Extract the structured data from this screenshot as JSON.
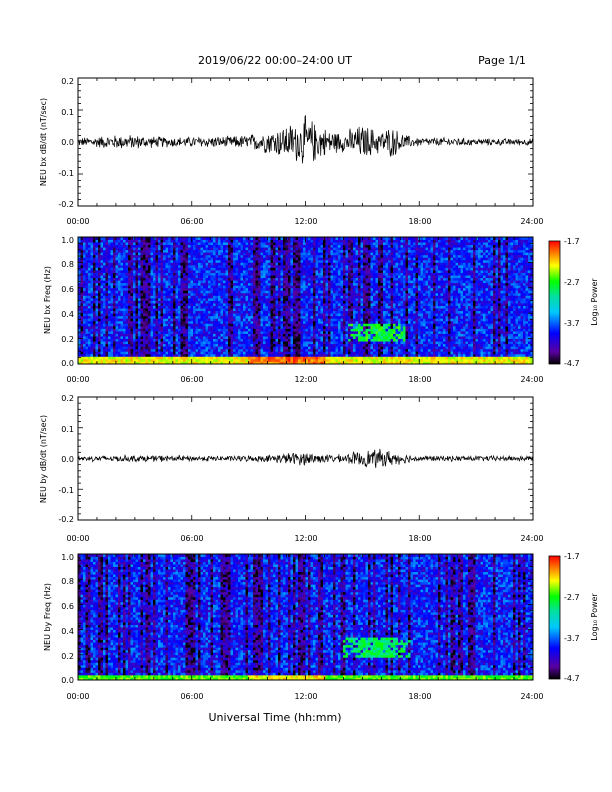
{
  "header": {
    "date_range": "2019/06/22  00:00–24:00 UT",
    "page": "Page 1/1"
  },
  "x_axis_label": "Universal Time (hh:mm)",
  "chart_data": [
    {
      "type": "line",
      "ylabel": "NEU bx dB/dt (nT/sec)",
      "xlim": [
        "00:00",
        "24:00"
      ],
      "ylim": [
        -0.2,
        0.2
      ],
      "x_ticks": [
        "00:00",
        "06:00",
        "12:00",
        "18:00",
        "24:00"
      ],
      "y_ticks": [
        "0.2",
        "0.1",
        "0.0",
        "-0.1",
        "-0.2"
      ],
      "envelope": {
        "x_hours": [
          0,
          1,
          2,
          3,
          4,
          5,
          6,
          7,
          8,
          9,
          10,
          11,
          11.5,
          12,
          12.5,
          13,
          13.5,
          14,
          14.5,
          15,
          15.5,
          16,
          16.5,
          17,
          17.5,
          18,
          19,
          20,
          21,
          22,
          23,
          24
        ],
        "amplitude": [
          0.015,
          0.02,
          0.025,
          0.025,
          0.02,
          0.018,
          0.018,
          0.02,
          0.02,
          0.025,
          0.04,
          0.06,
          0.07,
          0.09,
          0.07,
          0.05,
          0.04,
          0.035,
          0.05,
          0.06,
          0.05,
          0.04,
          0.055,
          0.035,
          0.02,
          0.015,
          0.015,
          0.015,
          0.012,
          0.012,
          0.012,
          0.012
        ]
      },
      "color": "#000000"
    },
    {
      "type": "heatmap",
      "ylabel": "NEU bx Freq (Hz)",
      "xlim": [
        "00:00",
        "24:00"
      ],
      "ylim": [
        0,
        1.0
      ],
      "x_ticks": [
        "00:00",
        "06:00",
        "12:00",
        "18:00",
        "24:00"
      ],
      "y_ticks": [
        "1.0",
        "0.8",
        "0.6",
        "0.4",
        "0.2",
        "0.0"
      ],
      "colorbar": {
        "label": "Log₁₀ Power",
        "ticks": [
          "-1.7",
          "-2.7",
          "-3.7",
          "-4.7"
        ],
        "range": [
          -4.7,
          -1.7
        ]
      },
      "features": [
        {
          "description": "low-frequency power band",
          "freq_max_hz": 0.05,
          "log_power": -2.3
        },
        {
          "description": "Pc1 emission",
          "start_hour": 14.3,
          "end_hour": 17.3,
          "freq_range_hz": [
            0.18,
            0.32
          ],
          "log_power": -2.8
        }
      ],
      "background_log_power": -3.9
    },
    {
      "type": "line",
      "ylabel": "NEU by dB/dt (nT/sec)",
      "xlim": [
        "00:00",
        "24:00"
      ],
      "ylim": [
        -0.2,
        0.2
      ],
      "x_ticks": [
        "00:00",
        "06:00",
        "12:00",
        "18:00",
        "24:00"
      ],
      "y_ticks": [
        "0.2",
        "0.1",
        "0.0",
        "-0.1",
        "-0.2"
      ],
      "envelope": {
        "x_hours": [
          0,
          2,
          4,
          6,
          8,
          10,
          11,
          12,
          13,
          14,
          15,
          16,
          17,
          18,
          20,
          22,
          24
        ],
        "amplitude": [
          0.01,
          0.012,
          0.012,
          0.01,
          0.01,
          0.012,
          0.02,
          0.025,
          0.015,
          0.015,
          0.03,
          0.035,
          0.02,
          0.01,
          0.01,
          0.01,
          0.01
        ]
      },
      "color": "#000000"
    },
    {
      "type": "heatmap",
      "ylabel": "NEU by Freq (Hz)",
      "xlim": [
        "00:00",
        "24:00"
      ],
      "ylim": [
        0,
        1.0
      ],
      "x_ticks": [
        "00:00",
        "06:00",
        "12:00",
        "18:00",
        "24:00"
      ],
      "y_ticks": [
        "1.0",
        "0.8",
        "0.6",
        "0.4",
        "0.2",
        "0.0"
      ],
      "colorbar": {
        "label": "Log₁₀ Power",
        "ticks": [
          "-1.7",
          "-2.7",
          "-3.7",
          "-4.7"
        ],
        "range": [
          -4.7,
          -1.7
        ]
      },
      "features": [
        {
          "description": "low-frequency power band",
          "freq_max_hz": 0.04,
          "log_power": -2.6
        },
        {
          "description": "Pc1 emission",
          "start_hour": 14.0,
          "end_hour": 17.5,
          "freq_range_hz": [
            0.18,
            0.33
          ],
          "log_power": -2.9
        }
      ],
      "background_log_power": -3.9
    }
  ]
}
